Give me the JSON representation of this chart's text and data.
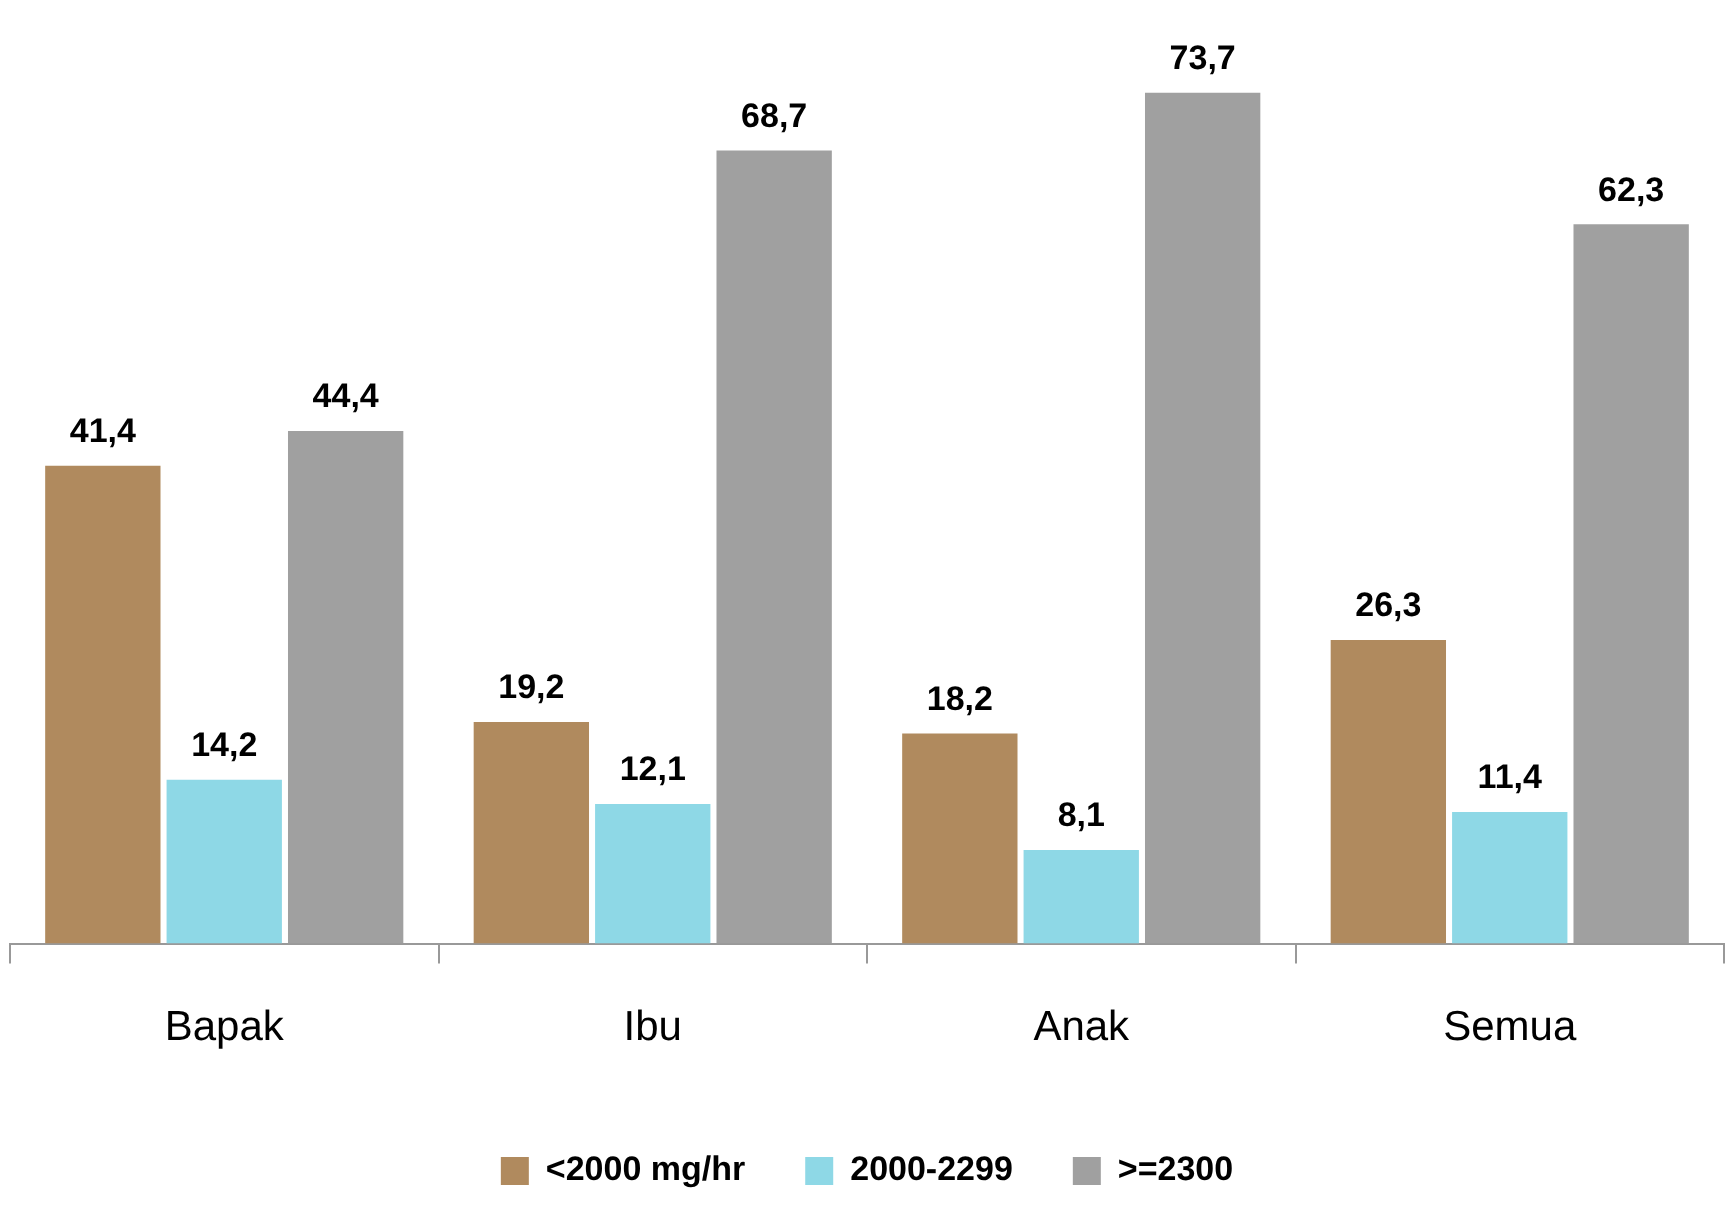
{
  "chart_data": {
    "type": "bar",
    "categories": [
      "Bapak",
      "Ibu",
      "Anak",
      "Semua"
    ],
    "series": [
      {
        "name": "<2000 mg/hr",
        "color": "#b08a5e",
        "values": [
          41.4,
          19.2,
          18.2,
          26.3
        ],
        "value_labels": [
          "41,4",
          "19,2",
          "18,2",
          "26,3"
        ]
      },
      {
        "name": "2000-2299",
        "color": "#8ed8e6",
        "values": [
          14.2,
          12.1,
          8.1,
          11.4
        ],
        "value_labels": [
          "14,2",
          "12,1",
          "8,1",
          "11,4"
        ]
      },
      {
        "name": ">=2300",
        "color": "#a0a0a0",
        "values": [
          44.4,
          68.7,
          73.7,
          62.3
        ],
        "value_labels": [
          "44,4",
          "68,7",
          "73,7",
          "62,3"
        ]
      }
    ],
    "legend": "bottom",
    "tick_labels": "x"
  }
}
